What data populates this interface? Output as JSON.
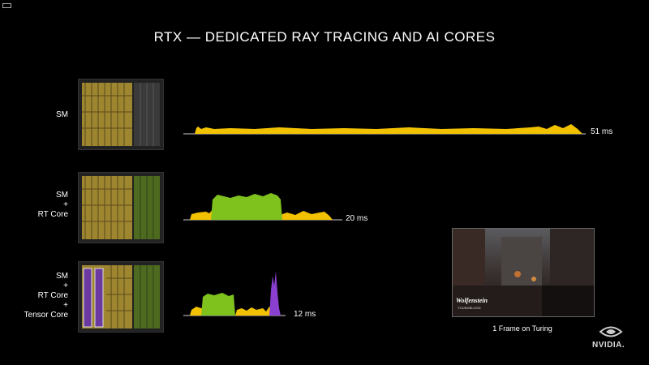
{
  "slide": {
    "title": "RTX — DEDICATED RAY TRACING AND AI CORES",
    "rows": [
      {
        "label_lines": [
          "SM"
        ],
        "time": "51 ms"
      },
      {
        "label_lines": [
          "SM",
          "+",
          "RT Core"
        ],
        "time": "20 ms"
      },
      {
        "label_lines": [
          "SM",
          "+",
          "RT Core",
          "+",
          "Tensor Core"
        ],
        "time": "12 ms"
      }
    ],
    "caption": "1 Frame on Turing",
    "game_logo": "Wolfenstein",
    "game_sub": "YOUNGBLOOD",
    "brand": "NVIDIA."
  },
  "colors": {
    "sm": "#f2c200",
    "rt_core": "#7fc21e",
    "tensor_core": "#8a3fd0",
    "die_gold": "#9e8530",
    "die_green": "#4e6a20"
  }
}
